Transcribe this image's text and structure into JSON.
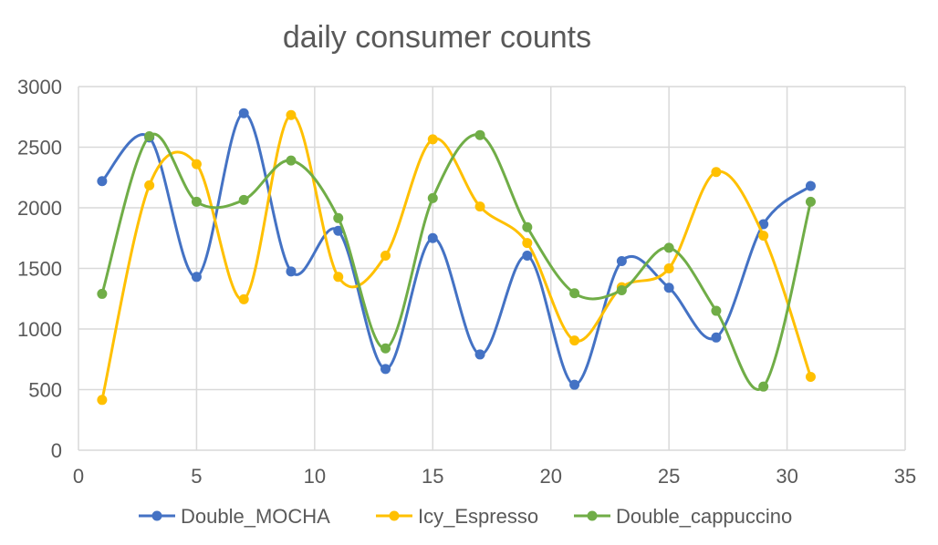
{
  "chart_data": {
    "type": "scatter",
    "title": "daily consumer counts",
    "xlim": [
      0,
      35
    ],
    "ylim": [
      0,
      3000
    ],
    "x_ticks": [
      0,
      5,
      10,
      15,
      20,
      25,
      30,
      35
    ],
    "y_ticks": [
      0,
      500,
      1000,
      1500,
      2000,
      2500,
      3000
    ],
    "grid": true,
    "smooth_lines": true,
    "legend_position": "bottom",
    "x": [
      1,
      3,
      5,
      7,
      9,
      11,
      13,
      15,
      17,
      19,
      21,
      23,
      25,
      27,
      29,
      31
    ],
    "series": [
      {
        "name": "Double_MOCHA",
        "color": "#4472C4",
        "values": [
          2220,
          2580,
          1430,
          2780,
          1475,
          1810,
          670,
          1750,
          790,
          1605,
          540,
          1560,
          1340,
          930,
          1865,
          2180
        ]
      },
      {
        "name": "Icy_Espresso",
        "color": "#FFC000",
        "values": [
          415,
          2185,
          2360,
          1245,
          2765,
          1430,
          1605,
          2565,
          2010,
          1710,
          905,
          1345,
          1500,
          2295,
          1770,
          605
        ]
      },
      {
        "name": "Double_cappuccino",
        "color": "#70AD47",
        "values": [
          1290,
          2590,
          2050,
          2065,
          2390,
          1915,
          840,
          2080,
          2600,
          1840,
          1295,
          1320,
          1670,
          1150,
          525,
          2050
        ]
      }
    ]
  }
}
